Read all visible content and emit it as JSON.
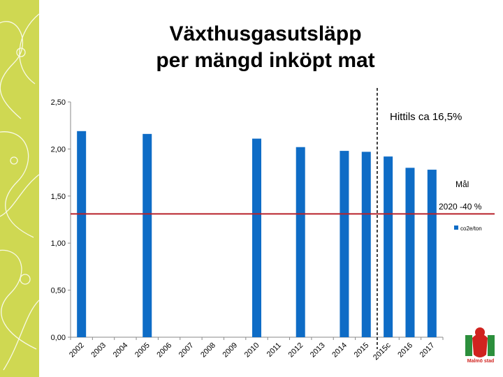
{
  "colors": {
    "sidebar": "#cfd852",
    "bar": "#0e6cc6",
    "goal_line": "#b8232b",
    "divider": "#000000",
    "logo_green": "#2c8f3c",
    "logo_red": "#d0231f"
  },
  "chart_data": {
    "type": "bar",
    "title": "Växthusgasutsläpp\nper mängd inköpt mat",
    "categories": [
      "2002",
      "2003",
      "2004",
      "2005",
      "2006",
      "2007",
      "2008",
      "2009",
      "2010",
      "2011",
      "2012",
      "2013",
      "2014",
      "2015",
      "2015c",
      "2016",
      "2017"
    ],
    "series": [
      {
        "name": "co2e/ton",
        "values": [
          2.19,
          null,
          null,
          2.16,
          null,
          null,
          null,
          null,
          2.11,
          null,
          2.02,
          null,
          1.98,
          1.97,
          1.92,
          1.8,
          1.78
        ]
      }
    ],
    "ylim": [
      0,
      2.5
    ],
    "yticks": [
      "0,00",
      "0,50",
      "1,00",
      "1,50",
      "2,00",
      "2,50"
    ],
    "ytick_values": [
      0,
      0.5,
      1.0,
      1.5,
      2.0,
      2.5
    ],
    "goal_line_value": 1.31,
    "divider_after_category": "2015",
    "annotations": {
      "progress": "Hittils ca 16,5%",
      "goal_label": "Mål",
      "goal_detail": "2020 -40 %"
    },
    "legend": {
      "label": "co2e/ton",
      "placement": "right"
    }
  },
  "logo": {
    "text": "Malmö stad"
  }
}
